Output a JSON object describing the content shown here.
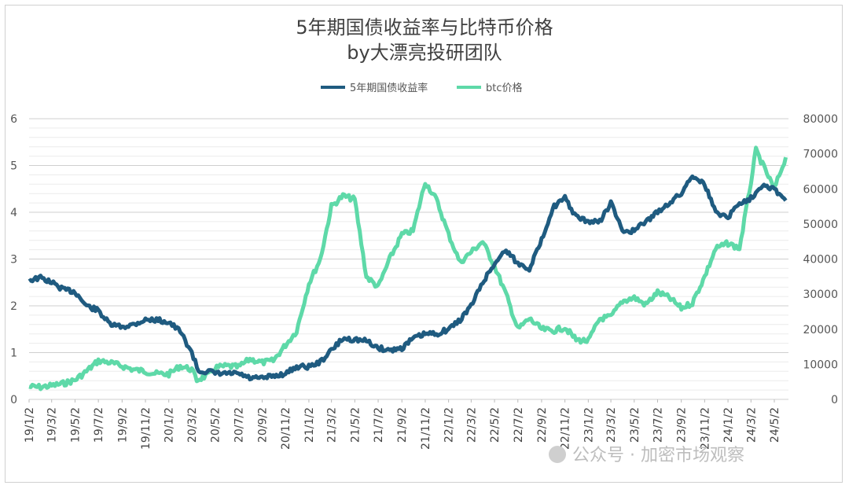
{
  "chart_data": {
    "type": "line",
    "title": "5年期国债收益率与比特币价格",
    "subtitle": "by大漂亮投研团队",
    "legend_position": "top-center",
    "grid": true,
    "y_left": {
      "ylim": [
        0,
        6
      ],
      "ticks": [
        "0",
        "1",
        "2",
        "3",
        "4",
        "5",
        "6"
      ]
    },
    "y_right": {
      "ylim": [
        0,
        80000
      ],
      "ticks": [
        "0",
        "10000",
        "20000",
        "30000",
        "40000",
        "50000",
        "60000",
        "70000",
        "80000"
      ]
    },
    "x_ticks": [
      "19/1/2",
      "19/3/2",
      "19/5/2",
      "19/7/2",
      "19/9/2",
      "19/11/2",
      "20/1/2",
      "20/3/2",
      "20/5/2",
      "20/7/2",
      "20/9/2",
      "20/11/2",
      "21/1/2",
      "21/3/2",
      "21/5/2",
      "21/7/2",
      "21/9/2",
      "21/11/2",
      "22/1/2",
      "22/3/2",
      "22/5/2",
      "22/7/2",
      "22/9/2",
      "22/11/2",
      "23/1/2",
      "23/3/2",
      "23/5/2",
      "23/7/2",
      "23/9/2",
      "23/11/2",
      "24/1/2",
      "24/3/2",
      "24/5/2"
    ],
    "series": [
      {
        "name": "5年期国债收益率",
        "axis": "left",
        "color": "#1f5b80",
        "points": [
          [
            "19/1/2",
            2.55
          ],
          [
            "19/2/1",
            2.6
          ],
          [
            "19/3/2",
            2.5
          ],
          [
            "19/4/1",
            2.35
          ],
          [
            "19/5/2",
            2.3
          ],
          [
            "19/6/1",
            2.0
          ],
          [
            "19/7/2",
            1.9
          ],
          [
            "19/8/1",
            1.6
          ],
          [
            "19/9/2",
            1.55
          ],
          [
            "19/10/1",
            1.6
          ],
          [
            "19/11/2",
            1.7
          ],
          [
            "19/12/1",
            1.7
          ],
          [
            "20/1/2",
            1.65
          ],
          [
            "20/2/1",
            1.45
          ],
          [
            "20/3/2",
            1.0
          ],
          [
            "20/3/20",
            0.6
          ],
          [
            "20/4/15",
            0.6
          ],
          [
            "20/5/2",
            0.55
          ],
          [
            "20/6/1",
            0.55
          ],
          [
            "20/7/2",
            0.55
          ],
          [
            "20/8/1",
            0.45
          ],
          [
            "20/9/2",
            0.45
          ],
          [
            "20/10/1",
            0.5
          ],
          [
            "20/11/2",
            0.55
          ],
          [
            "20/12/1",
            0.7
          ],
          [
            "21/1/2",
            0.7
          ],
          [
            "21/2/1",
            0.8
          ],
          [
            "21/3/2",
            1.05
          ],
          [
            "21/4/1",
            1.3
          ],
          [
            "21/5/2",
            1.28
          ],
          [
            "21/6/1",
            1.25
          ],
          [
            "21/7/2",
            1.1
          ],
          [
            "21/8/1",
            1.05
          ],
          [
            "21/9/2",
            1.1
          ],
          [
            "21/10/1",
            1.3
          ],
          [
            "21/11/2",
            1.4
          ],
          [
            "21/12/1",
            1.4
          ],
          [
            "22/1/2",
            1.5
          ],
          [
            "22/2/1",
            1.7
          ],
          [
            "22/3/2",
            2.0
          ],
          [
            "22/4/1",
            2.5
          ],
          [
            "22/5/2",
            2.9
          ],
          [
            "22/6/1",
            3.2
          ],
          [
            "22/7/2",
            2.9
          ],
          [
            "22/8/1",
            2.8
          ],
          [
            "22/9/2",
            3.4
          ],
          [
            "22/10/1",
            4.1
          ],
          [
            "22/11/2",
            4.3
          ],
          [
            "22/12/1",
            3.9
          ],
          [
            "23/1/2",
            3.8
          ],
          [
            "23/2/1",
            3.8
          ],
          [
            "23/3/2",
            4.2
          ],
          [
            "23/4/1",
            3.6
          ],
          [
            "23/5/2",
            3.6
          ],
          [
            "23/6/1",
            3.8
          ],
          [
            "23/7/2",
            4.0
          ],
          [
            "23/8/1",
            4.2
          ],
          [
            "23/9/2",
            4.4
          ],
          [
            "23/10/1",
            4.8
          ],
          [
            "23/11/2",
            4.6
          ],
          [
            "23/12/1",
            4.0
          ],
          [
            "24/1/2",
            3.9
          ],
          [
            "24/2/1",
            4.2
          ],
          [
            "24/3/2",
            4.3
          ],
          [
            "24/4/1",
            4.6
          ],
          [
            "24/5/2",
            4.5
          ],
          [
            "24/6/1",
            4.25
          ]
        ]
      },
      {
        "name": "btc价格",
        "axis": "right",
        "color": "#5ed9a8",
        "points": [
          [
            "19/1/2",
            3600
          ],
          [
            "19/2/1",
            3500
          ],
          [
            "19/3/2",
            3900
          ],
          [
            "19/4/1",
            4500
          ],
          [
            "19/5/2",
            5500
          ],
          [
            "19/6/1",
            8000
          ],
          [
            "19/7/2",
            11000
          ],
          [
            "19/8/1",
            10500
          ],
          [
            "19/9/2",
            9500
          ],
          [
            "19/10/1",
            8500
          ],
          [
            "19/11/2",
            8000
          ],
          [
            "19/12/1",
            7300
          ],
          [
            "20/1/2",
            7200
          ],
          [
            "20/2/1",
            9500
          ],
          [
            "20/3/2",
            8500
          ],
          [
            "20/3/15",
            5500
          ],
          [
            "20/4/15",
            7000
          ],
          [
            "20/5/2",
            9000
          ],
          [
            "20/6/1",
            9500
          ],
          [
            "20/7/2",
            9200
          ],
          [
            "20/8/1",
            11500
          ],
          [
            "20/9/2",
            10500
          ],
          [
            "20/10/1",
            11000
          ],
          [
            "20/11/2",
            15500
          ],
          [
            "20/12/1",
            19500
          ],
          [
            "21/1/2",
            33000
          ],
          [
            "21/2/1",
            40000
          ],
          [
            "21/3/2",
            55000
          ],
          [
            "21/4/1",
            58000
          ],
          [
            "21/5/2",
            57000
          ],
          [
            "21/6/1",
            35000
          ],
          [
            "21/7/2",
            32000
          ],
          [
            "21/8/1",
            40000
          ],
          [
            "21/9/2",
            47000
          ],
          [
            "21/10/1",
            48000
          ],
          [
            "21/11/2",
            62000
          ],
          [
            "21/12/1",
            57000
          ],
          [
            "22/1/2",
            47000
          ],
          [
            "22/2/1",
            39000
          ],
          [
            "22/3/2",
            42000
          ],
          [
            "22/4/1",
            45000
          ],
          [
            "22/5/2",
            38000
          ],
          [
            "22/6/1",
            30000
          ],
          [
            "22/7/2",
            20000
          ],
          [
            "22/8/1",
            23000
          ],
          [
            "22/9/2",
            20000
          ],
          [
            "22/10/1",
            19500
          ],
          [
            "22/11/2",
            20500
          ],
          [
            "22/12/1",
            17000
          ],
          [
            "23/1/2",
            16600
          ],
          [
            "23/2/1",
            23000
          ],
          [
            "23/3/2",
            23500
          ],
          [
            "23/4/1",
            28000
          ],
          [
            "23/5/2",
            29000
          ],
          [
            "23/6/1",
            27000
          ],
          [
            "23/7/2",
            30500
          ],
          [
            "23/8/1",
            29000
          ],
          [
            "23/9/2",
            26000
          ],
          [
            "23/10/1",
            27500
          ],
          [
            "23/11/2",
            35000
          ],
          [
            "23/12/1",
            43000
          ],
          [
            "24/1/2",
            44500
          ],
          [
            "24/2/1",
            43000
          ],
          [
            "24/3/2",
            62000
          ],
          [
            "24/3/15",
            71000
          ],
          [
            "24/4/1",
            67000
          ],
          [
            "24/5/2",
            60000
          ],
          [
            "24/6/1",
            69000
          ]
        ]
      }
    ]
  },
  "watermark": "公众号 · 加密市场观察"
}
